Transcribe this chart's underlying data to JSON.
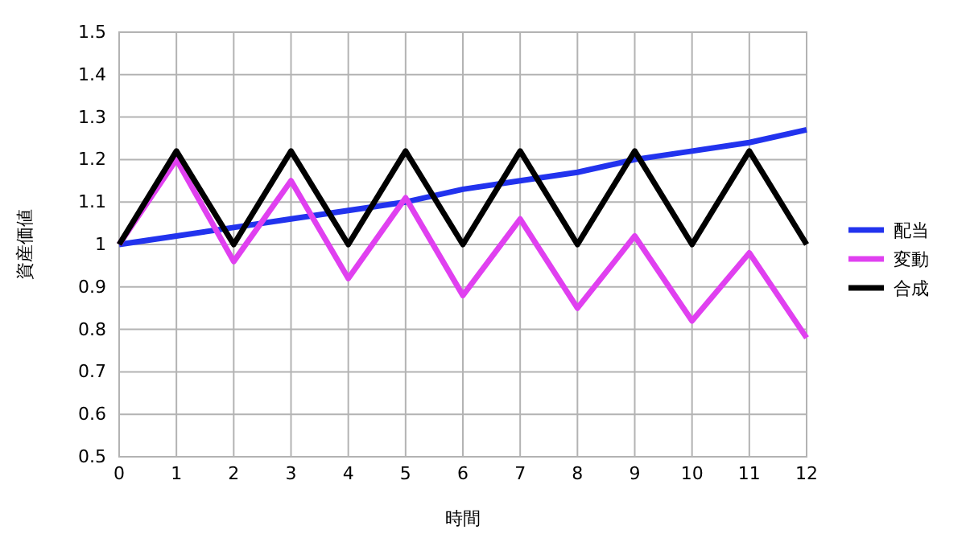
{
  "chart_data": {
    "type": "line",
    "xlabel": "時間",
    "ylabel": "資産価値",
    "x": [
      0,
      1,
      2,
      3,
      4,
      5,
      6,
      7,
      8,
      9,
      10,
      11,
      12
    ],
    "series": [
      {
        "name": "配当",
        "color": "#2233ee",
        "values": [
          1,
          1.02,
          1.04,
          1.06,
          1.08,
          1.1,
          1.13,
          1.15,
          1.17,
          1.2,
          1.22,
          1.24,
          1.27
        ]
      },
      {
        "name": "変動",
        "color": "#e040f0",
        "values": [
          1,
          1.2,
          0.96,
          1.15,
          0.92,
          1.11,
          0.88,
          1.06,
          0.85,
          1.02,
          0.82,
          0.98,
          0.78
        ]
      },
      {
        "name": "合成",
        "color": "#000000",
        "values": [
          1,
          1.22,
          1,
          1.22,
          1,
          1.22,
          1,
          1.22,
          1,
          1.22,
          1,
          1.22,
          1
        ]
      }
    ],
    "xlim": [
      0,
      12
    ],
    "xticks": [
      0,
      1,
      2,
      3,
      4,
      5,
      6,
      7,
      8,
      9,
      10,
      11,
      12
    ],
    "ylim": [
      0.5,
      1.5
    ],
    "yticks": [
      0.5,
      0.6,
      0.7,
      0.8,
      0.9,
      1,
      1.1,
      1.2,
      1.3,
      1.4,
      1.5
    ],
    "grid": true,
    "legend": "right",
    "marker": "none",
    "line_style": "solid"
  }
}
